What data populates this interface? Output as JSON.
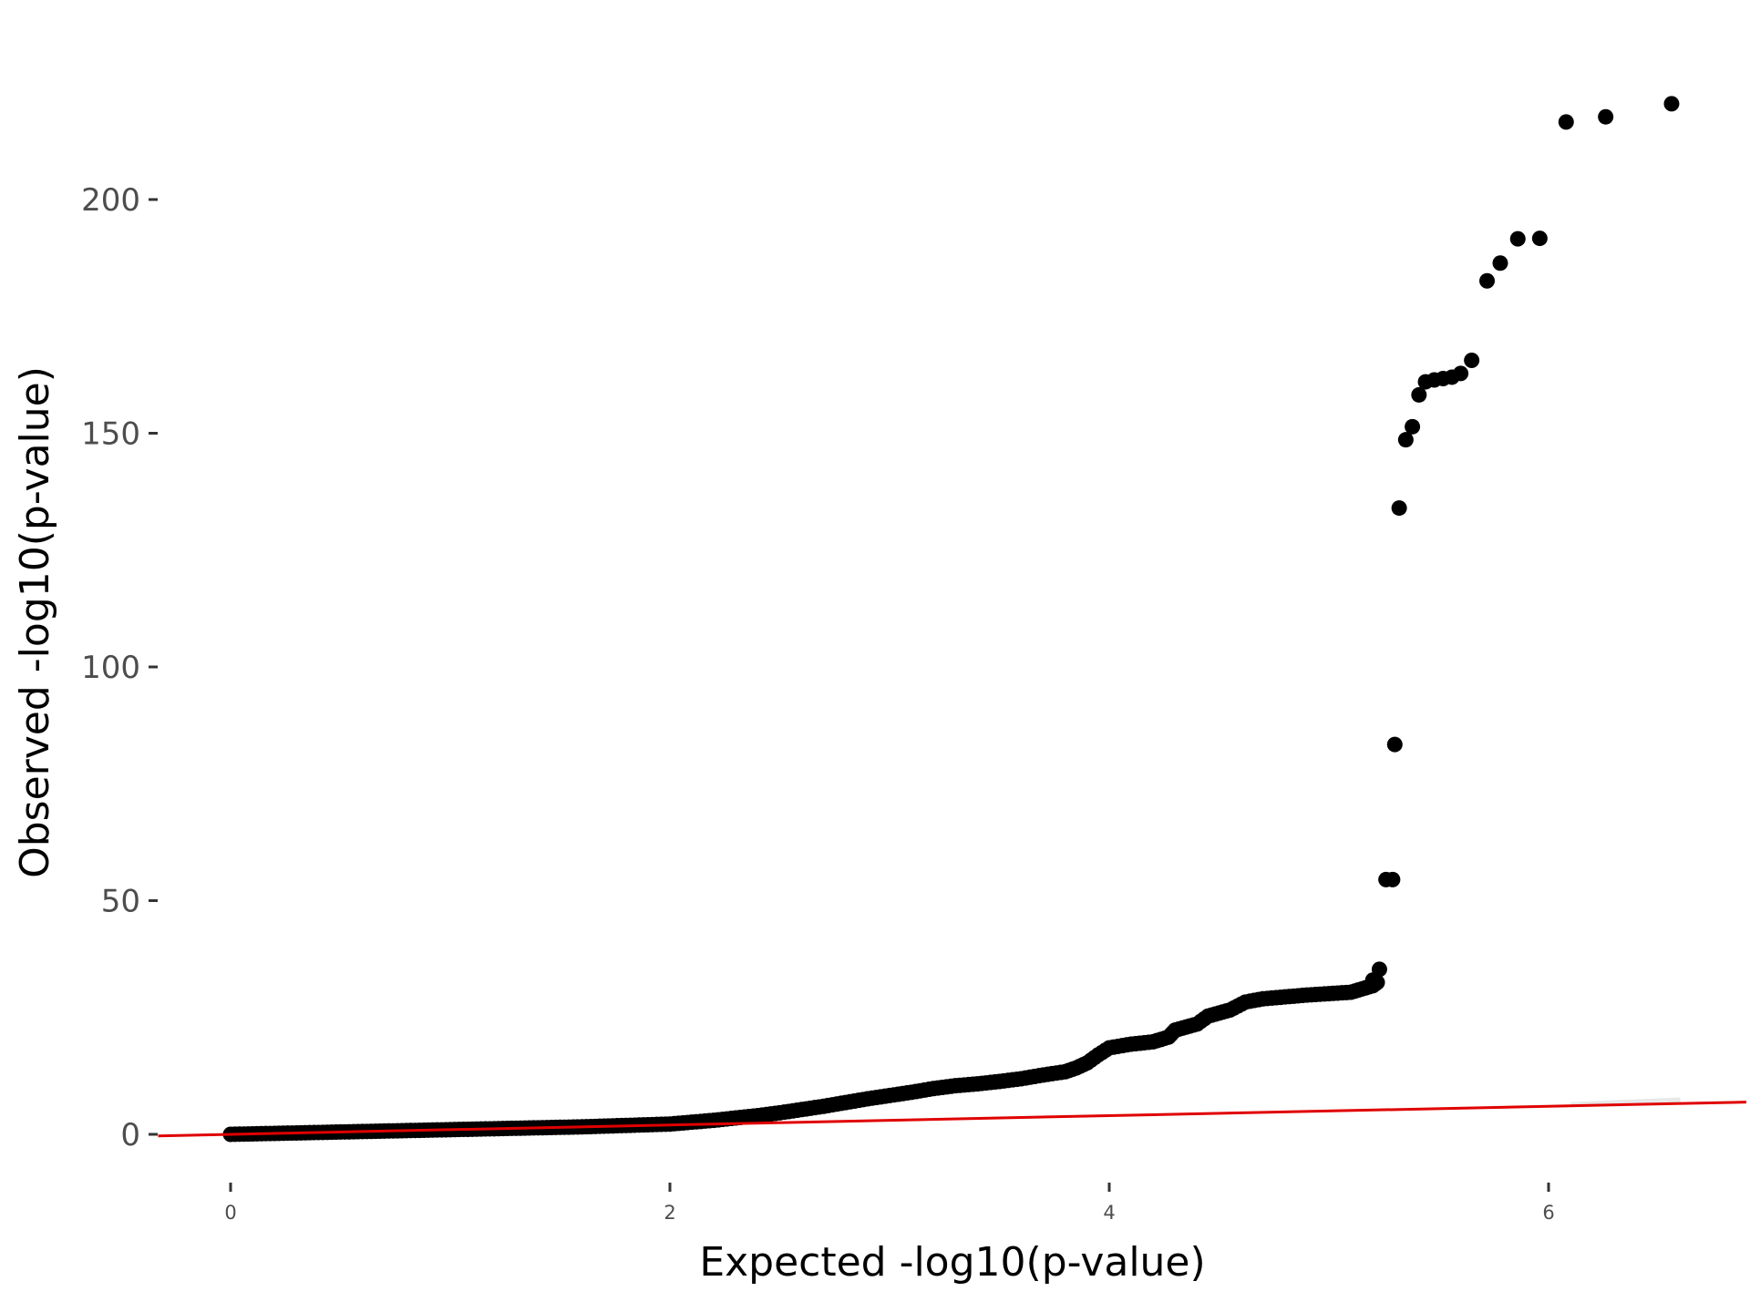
{
  "chart_data": {
    "type": "scatter",
    "title": "",
    "xlabel": "Expected -log10(p-value)",
    "ylabel": "Observed -log10(p-value)",
    "xlim": [
      -0.33,
      6.9
    ],
    "ylim": [
      -14,
      234
    ],
    "xticks": [
      0,
      2,
      4,
      6
    ],
    "yticks": [
      0,
      50,
      100,
      150,
      200
    ],
    "grid": false,
    "legend": "none",
    "colors": {
      "points": "#000000",
      "reference_line": "#e00000",
      "confidence_band": "#d9d9d9"
    },
    "reference_line": {
      "intercept": 0,
      "slope": 1,
      "x_range": [
        -0.33,
        6.9
      ]
    },
    "series": [
      {
        "curve": [
          [
            0.0,
            0.0
          ],
          [
            0.3,
            0.3
          ],
          [
            0.6,
            0.6
          ],
          [
            1.0,
            1.0
          ],
          [
            1.3,
            1.3
          ],
          [
            1.6,
            1.6
          ],
          [
            2.0,
            2.2
          ],
          [
            2.2,
            3.0
          ],
          [
            2.4,
            4.0
          ],
          [
            2.5,
            4.6
          ],
          [
            2.6,
            5.3
          ],
          [
            2.7,
            6.0
          ],
          [
            2.8,
            6.8
          ],
          [
            2.9,
            7.6
          ],
          [
            3.0,
            8.3
          ],
          [
            3.1,
            9.0
          ],
          [
            3.2,
            9.8
          ],
          [
            3.3,
            10.4
          ],
          [
            3.4,
            10.8
          ],
          [
            3.5,
            11.3
          ],
          [
            3.6,
            11.9
          ],
          [
            3.7,
            12.7
          ],
          [
            3.8,
            13.4
          ],
          [
            3.85,
            14.2
          ],
          [
            3.9,
            15.3
          ],
          [
            3.95,
            17.0
          ],
          [
            4.0,
            18.5
          ],
          [
            4.1,
            19.3
          ],
          [
            4.2,
            19.8
          ],
          [
            4.27,
            20.8
          ],
          [
            4.3,
            22.3
          ],
          [
            4.4,
            23.6
          ],
          [
            4.45,
            25.3
          ],
          [
            4.55,
            26.6
          ],
          [
            4.62,
            28.3
          ],
          [
            4.7,
            29.0
          ],
          [
            4.8,
            29.4
          ],
          [
            4.9,
            29.8
          ],
          [
            5.0,
            30.1
          ],
          [
            5.1,
            30.4
          ],
          [
            5.2,
            31.8
          ],
          [
            5.22,
            32.5
          ]
        ],
        "points": [
          [
            5.2,
            33.0
          ],
          [
            5.23,
            35.3
          ],
          [
            5.26,
            54.5
          ],
          [
            5.29,
            54.5
          ],
          [
            5.3,
            83.4
          ],
          [
            5.32,
            134.0
          ],
          [
            5.35,
            148.6
          ],
          [
            5.38,
            151.4
          ],
          [
            5.41,
            158.2
          ],
          [
            5.44,
            161.0
          ],
          [
            5.48,
            161.4
          ],
          [
            5.52,
            161.7
          ],
          [
            5.56,
            162.0
          ],
          [
            5.6,
            162.8
          ],
          [
            5.65,
            165.6
          ],
          [
            5.72,
            182.6
          ],
          [
            5.78,
            186.4
          ],
          [
            5.86,
            191.6
          ],
          [
            5.96,
            191.7
          ],
          [
            6.08,
            216.6
          ],
          [
            6.26,
            217.7
          ],
          [
            6.56,
            220.5
          ]
        ]
      }
    ]
  }
}
